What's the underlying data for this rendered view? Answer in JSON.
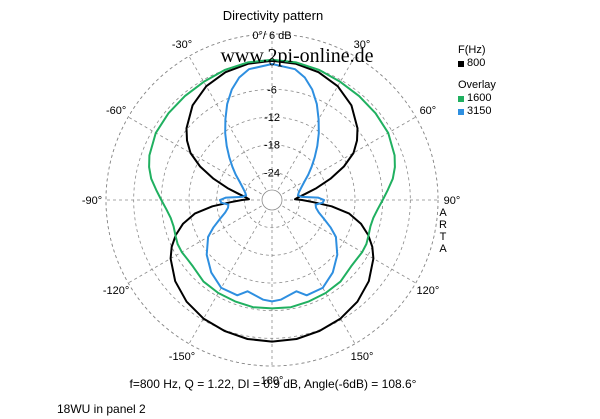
{
  "chart_data": {
    "type": "polar",
    "title": "Directivity pattern",
    "top_label": "0°/ 6 dB",
    "watermark": "www.2pi-online.de",
    "angle_labels": [
      "-30°",
      "30°",
      "-60°",
      "60°",
      "-90°",
      "90°",
      "-120°",
      "120°",
      "-150°",
      "150°",
      "180°"
    ],
    "radial_labels": [
      "0",
      "-6",
      "-12",
      "-18",
      "-24"
    ],
    "radial_range_db": [
      -30,
      6
    ],
    "legend_header": "F(Hz)",
    "legend_overlay_header": "Overlay",
    "side_text": [
      "A",
      "R",
      "T",
      "A"
    ],
    "series": [
      {
        "name": "800",
        "color": "#000000",
        "points_deg_db": [
          [
            0,
            0.2
          ],
          [
            10,
            0
          ],
          [
            20,
            -0.5
          ],
          [
            30,
            -1.5
          ],
          [
            40,
            -3.2
          ],
          [
            50,
            -5.8
          ],
          [
            55,
            -7.5
          ],
          [
            60,
            -9.6
          ],
          [
            65,
            -12.8
          ],
          [
            70,
            -16.5
          ],
          [
            75,
            -20
          ],
          [
            80,
            -22.8
          ],
          [
            85,
            -24.5
          ],
          [
            88,
            -25
          ],
          [
            90,
            -23.5
          ],
          [
            93,
            -21
          ],
          [
            96,
            -17
          ],
          [
            100,
            -13
          ],
          [
            105,
            -10
          ],
          [
            110,
            -7.8
          ],
          [
            115,
            -6
          ],
          [
            120,
            -4.6
          ],
          [
            130,
            -2.6
          ],
          [
            140,
            -1.2
          ],
          [
            150,
            -0.3
          ],
          [
            160,
            0.2
          ],
          [
            170,
            0.6
          ],
          [
            180,
            0.7
          ]
        ]
      },
      {
        "name": "1600",
        "color": "#20b060",
        "points_deg_db": [
          [
            0,
            0.4
          ],
          [
            10,
            0.3
          ],
          [
            20,
            0
          ],
          [
            30,
            -0.4
          ],
          [
            40,
            -0.6
          ],
          [
            50,
            -0.7
          ],
          [
            60,
            -0.9
          ],
          [
            70,
            -1.7
          ],
          [
            75,
            -2.4
          ],
          [
            80,
            -3.4
          ],
          [
            85,
            -4.8
          ],
          [
            90,
            -6
          ],
          [
            95,
            -7
          ],
          [
            100,
            -7.7
          ],
          [
            105,
            -7.9
          ],
          [
            110,
            -7.7
          ],
          [
            115,
            -7.4
          ],
          [
            120,
            -7.4
          ],
          [
            125,
            -7.6
          ],
          [
            130,
            -7.6
          ],
          [
            140,
            -6.9
          ],
          [
            150,
            -6.7
          ],
          [
            160,
            -6.6
          ],
          [
            170,
            -6.4
          ],
          [
            180,
            -6.5
          ]
        ]
      },
      {
        "name": "3150",
        "color": "#2e8fe0",
        "points_deg_db": [
          [
            0,
            -0.5
          ],
          [
            10,
            -1.2
          ],
          [
            15,
            -2.5
          ],
          [
            20,
            -4.5
          ],
          [
            25,
            -7
          ],
          [
            30,
            -9.8
          ],
          [
            35,
            -12.3
          ],
          [
            40,
            -14.7
          ],
          [
            45,
            -16.9
          ],
          [
            50,
            -18.8
          ],
          [
            55,
            -20.4
          ],
          [
            60,
            -21.8
          ],
          [
            65,
            -22.8
          ],
          [
            70,
            -23.5
          ],
          [
            75,
            -24
          ],
          [
            80,
            -24.3
          ],
          [
            84,
            -23.5
          ],
          [
            87,
            -20
          ],
          [
            90,
            -18.7
          ],
          [
            93,
            -19
          ],
          [
            96,
            -20.5
          ],
          [
            100,
            -20.3
          ],
          [
            105,
            -19.5
          ],
          [
            110,
            -18
          ],
          [
            115,
            -16
          ],
          [
            120,
            -14
          ],
          [
            130,
            -11.5
          ],
          [
            140,
            -9.5
          ],
          [
            150,
            -8
          ],
          [
            160,
            -8
          ],
          [
            165,
            -9.5
          ],
          [
            170,
            -9
          ],
          [
            175,
            -8.3
          ],
          [
            180,
            -8
          ]
        ]
      }
    ]
  },
  "summary": "f=800 Hz,  Q =  1.22,  DI =   0.9 dB, Angle(-6dB) = 108.6°",
  "footnote": "18WU in panel 2"
}
